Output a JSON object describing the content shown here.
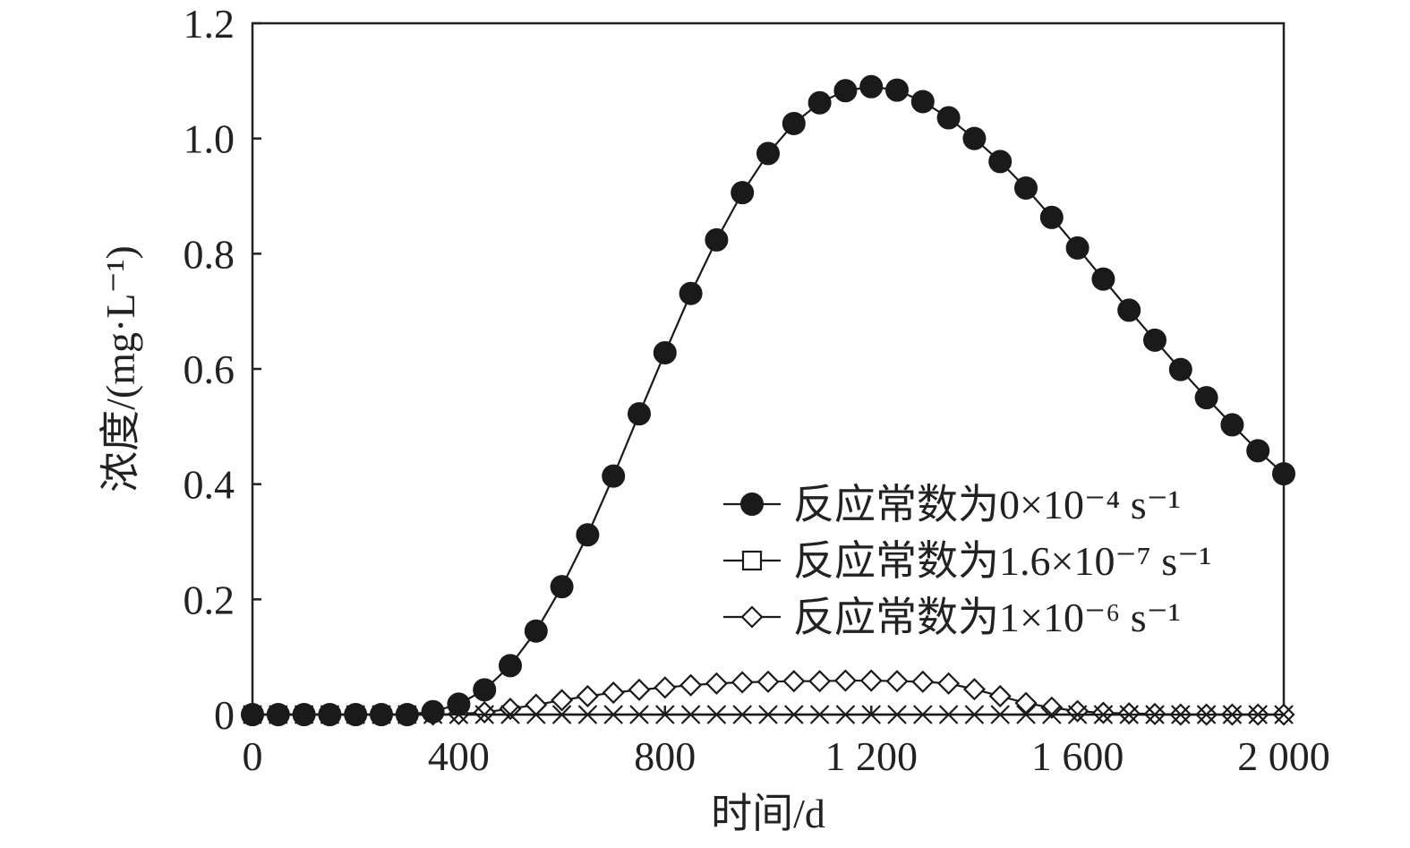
{
  "chart_data": {
    "type": "line",
    "xlabel": "时间/d",
    "ylabel": "浓度/(mg·L⁻¹)",
    "xlim": [
      0,
      2000
    ],
    "ylim": [
      0,
      1.2
    ],
    "x_ticks": [
      0,
      400,
      800,
      1200,
      1600,
      2000
    ],
    "x_tick_labels": [
      "0",
      "400",
      "800",
      "1 200",
      "1 600",
      "2 000"
    ],
    "y_ticks": [
      0,
      0.2,
      0.4,
      0.6,
      0.8,
      1.0,
      1.2
    ],
    "y_tick_labels": [
      "0",
      "0.2",
      "0.4",
      "0.6",
      "0.8",
      "1.0",
      "1.2"
    ],
    "grid": false,
    "legend_position": "bottom-right",
    "x": [
      0,
      50,
      100,
      150,
      200,
      250,
      300,
      350,
      400,
      450,
      500,
      550,
      600,
      650,
      700,
      750,
      800,
      850,
      900,
      950,
      1000,
      1050,
      1100,
      1150,
      1200,
      1250,
      1300,
      1350,
      1400,
      1450,
      1500,
      1550,
      1600,
      1650,
      1700,
      1750,
      1800,
      1850,
      1900,
      1950,
      2000
    ],
    "series": [
      {
        "name": "反应常数为0×10⁻⁴ s⁻¹",
        "marker": "filled-circle",
        "values": [
          0,
          0,
          0,
          0,
          0,
          0,
          0,
          0.005,
          0.018,
          0.043,
          0.085,
          0.145,
          0.222,
          0.312,
          0.414,
          0.522,
          0.628,
          0.731,
          0.824,
          0.906,
          0.974,
          1.026,
          1.062,
          1.083,
          1.09,
          1.084,
          1.064,
          1.036,
          1.0,
          0.96,
          0.914,
          0.863,
          0.81,
          0.756,
          0.702,
          0.65,
          0.599,
          0.55,
          0.503,
          0.458,
          0.418
        ]
      },
      {
        "name": "反应常数为1.6×10⁻⁷ s⁻¹",
        "marker": "x-cross",
        "values": [
          0,
          0,
          0,
          0,
          0,
          0,
          0,
          0,
          0,
          0,
          0,
          0,
          0,
          0,
          0,
          0,
          0,
          0,
          0,
          0,
          0,
          0,
          0,
          0,
          0,
          0,
          0,
          0,
          0,
          0,
          0,
          0,
          0,
          0,
          0,
          0,
          0,
          0,
          0,
          0,
          0
        ]
      },
      {
        "name": "反应常数为1×10⁻⁶ s⁻¹",
        "marker": "open-diamond",
        "values": [
          0,
          0,
          0,
          0,
          0,
          0,
          0,
          0,
          0.001,
          0.004,
          0.01,
          0.017,
          0.025,
          0.032,
          0.038,
          0.043,
          0.047,
          0.051,
          0.054,
          0.056,
          0.057,
          0.058,
          0.058,
          0.059,
          0.059,
          0.058,
          0.057,
          0.054,
          0.044,
          0.032,
          0.02,
          0.012,
          0.006,
          0.003,
          0.002,
          0.001,
          0,
          0,
          0,
          0,
          0
        ]
      }
    ]
  }
}
